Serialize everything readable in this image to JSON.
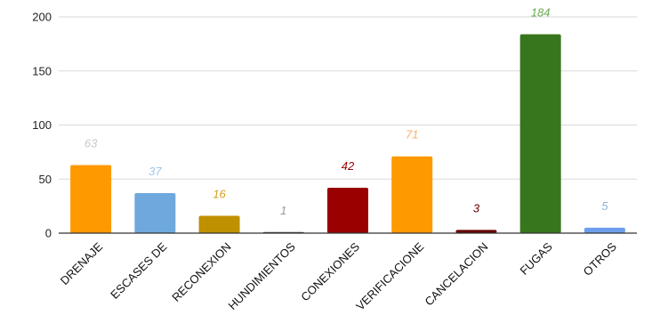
{
  "chart_data": {
    "type": "bar",
    "categories": [
      "DRENAJE",
      "ESCASES DE",
      "RECONEXION",
      "HUNDIMIENTOS",
      "CONEXIONES",
      "VERIFICACIONE",
      "CANCELACION",
      "FUGAS",
      "OTROS"
    ],
    "values": [
      63,
      37,
      16,
      1,
      42,
      71,
      3,
      184,
      5
    ],
    "data_labels": [
      "63",
      "37",
      "16",
      "1",
      "42",
      "71",
      "3",
      "184",
      "5"
    ],
    "colors": [
      "#ff9900",
      "#6fa8dc",
      "#bf9000",
      "#434343",
      "#990000",
      "#ff9900",
      "#660000",
      "#38761d",
      "#6d9eeb"
    ],
    "label_colors": [
      "#c9c9c9",
      "#9fc5e8",
      "#d4a017",
      "#999999",
      "#990000",
      "#f6b26b",
      "#660000",
      "#6aa84f",
      "#8fb3de"
    ],
    "ylim": [
      0,
      200
    ],
    "yticks": [
      "0",
      "50",
      "100",
      "150",
      "200"
    ],
    "grid": true,
    "legend": "none"
  }
}
